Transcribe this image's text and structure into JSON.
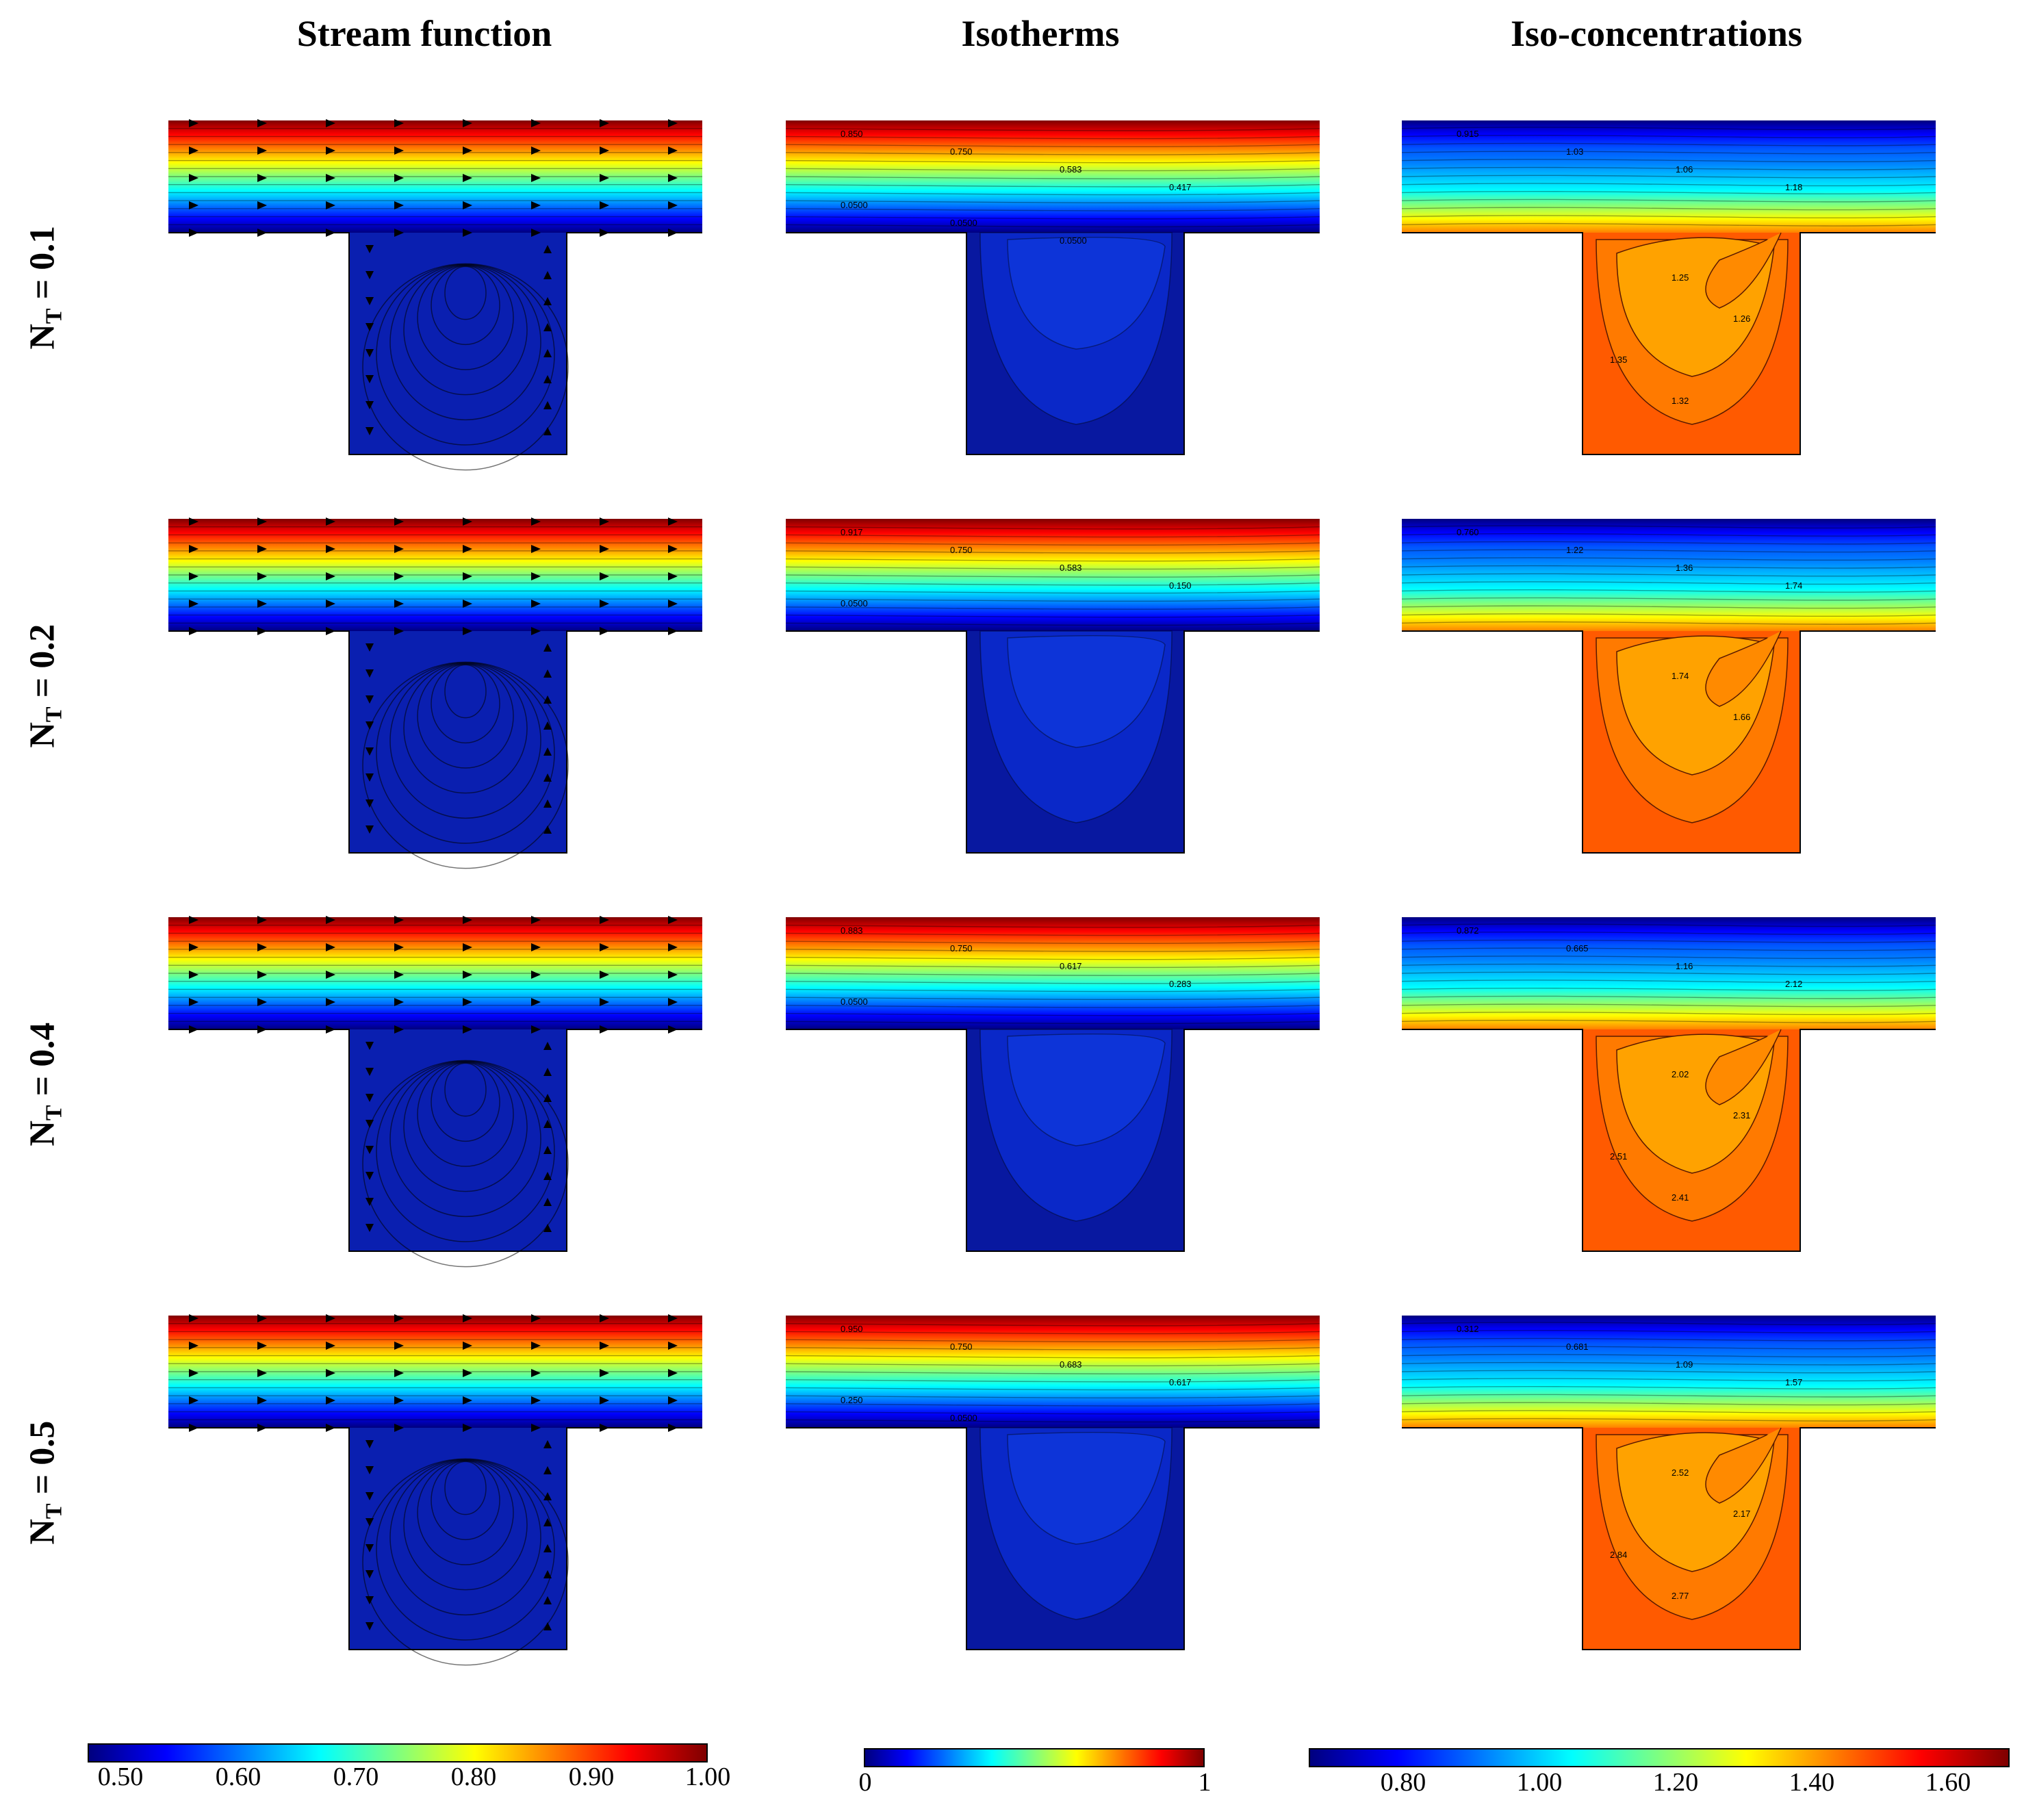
{
  "columns": [
    {
      "title": "Stream function"
    },
    {
      "title": "Isotherms"
    },
    {
      "title": "Iso-concentrations"
    }
  ],
  "rows": [
    {
      "param": "N",
      "sub": "T",
      "value": " = 0.1",
      "iso_labels": [
        "0.850",
        "0.750",
        "0.583",
        "0.417",
        "0.0500",
        "0.0500",
        "0.0500"
      ],
      "conc_labels": [
        "0.915",
        "1.03",
        "1.06",
        "1.18",
        "1.25",
        "1.26",
        "1.35",
        "1.32"
      ]
    },
    {
      "param": "N",
      "sub": "T",
      "value": " = 0.2",
      "iso_labels": [
        "0.917",
        "0.750",
        "0.583",
        "0.150",
        "0.0500"
      ],
      "conc_labels": [
        "0.760",
        "1.22",
        "1.36",
        "1.74",
        "1.74",
        "1.66"
      ]
    },
    {
      "param": "N",
      "sub": "T",
      "value": " = 0.4",
      "iso_labels": [
        "0.883",
        "0.750",
        "0.617",
        "0.283",
        "0.0500"
      ],
      "conc_labels": [
        "0.872",
        "0.665",
        "1.16",
        "2.12",
        "2.02",
        "2.31",
        "2.51",
        "2.41"
      ]
    },
    {
      "param": "N",
      "sub": "T",
      "value": " = 0.5",
      "iso_labels": [
        "0.950",
        "0.750",
        "0.683",
        "0.617",
        "0.250",
        "0.0500"
      ],
      "conc_labels": [
        "0.312",
        "0.681",
        "1.09",
        "1.57",
        "2.52",
        "2.17",
        "2.84",
        "2.77"
      ]
    }
  ],
  "colorbars": [
    {
      "ticks": [
        "0.50",
        "0.60",
        "0.70",
        "0.80",
        "0.90",
        "1.00"
      ],
      "range": [
        0.47,
        1.0
      ]
    },
    {
      "ticks": [
        "0",
        "1"
      ],
      "range": [
        0,
        1
      ]
    },
    {
      "ticks": [
        "0.80",
        "1.00",
        "1.20",
        "1.40",
        "1.60"
      ],
      "range": [
        0.67,
        1.7
      ]
    }
  ],
  "colormap": [
    "#00007f",
    "#0000ff",
    "#007fff",
    "#00ffff",
    "#7fff7f",
    "#ffff00",
    "#ff7f00",
    "#ff0000",
    "#7f0000"
  ],
  "fill_colors": {
    "cavity_blue": "#0a1fb0",
    "cavity_orange_core": "#ffa200",
    "cavity_orange_outer": "#ff5a00"
  }
}
